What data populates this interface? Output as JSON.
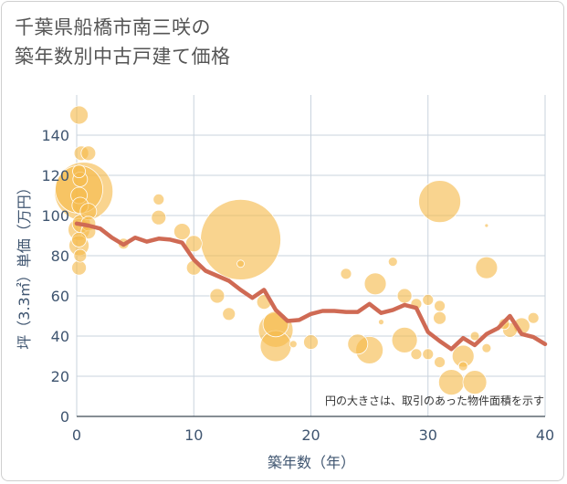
{
  "title_lines": [
    "千葉県船橋市南三咲の",
    "築年数別中古戸建て価格"
  ],
  "chart_data": {
    "type": "scatter+line",
    "xlabel": "築年数（年）",
    "ylabel": "坪（3.3㎡）単価（万円）",
    "xlim": [
      0,
      40
    ],
    "ylim": [
      0,
      160
    ],
    "xticks": [
      0,
      10,
      20,
      30,
      40
    ],
    "yticks": [
      0,
      20,
      40,
      60,
      80,
      100,
      120,
      140
    ],
    "note": "円の大きさは、取引のあった物件面積を示す",
    "colors": {
      "bubble": "#f5b94a",
      "bubble_edge": "#ffffff",
      "line": "#cf6a54",
      "grid": "#c9d3de"
    },
    "trend_line": {
      "x": [
        0,
        1,
        2,
        3,
        4,
        5,
        6,
        7,
        8,
        9,
        10,
        11,
        12,
        13,
        14,
        15,
        16,
        17,
        18,
        19,
        20,
        21,
        22,
        23,
        24,
        25,
        26,
        27,
        28,
        29,
        30,
        31,
        32,
        33,
        34,
        35,
        36,
        37,
        38,
        39,
        40
      ],
      "y": [
        96,
        95,
        93.5,
        89,
        85.5,
        89,
        87,
        88.5,
        88,
        86.5,
        78,
        72.5,
        70,
        67.5,
        63,
        59,
        63,
        53,
        47.5,
        48,
        51,
        52.5,
        52.5,
        52,
        52,
        56,
        51.5,
        53,
        55.5,
        54,
        42,
        37.5,
        33.5,
        39,
        35.5,
        41,
        44,
        50,
        41,
        39.5,
        36
      ]
    },
    "bubbles": [
      {
        "x": 0.2,
        "y": 150,
        "s": 10
      },
      {
        "x": 0.4,
        "y": 131,
        "s": 8
      },
      {
        "x": 1,
        "y": 131,
        "s": 8
      },
      {
        "x": 0.2,
        "y": 122,
        "s": 7
      },
      {
        "x": 0.3,
        "y": 118,
        "s": 8
      },
      {
        "x": 0.2,
        "y": 113,
        "s": 26
      },
      {
        "x": 0.6,
        "y": 112,
        "s": 32
      },
      {
        "x": 0.2,
        "y": 110,
        "s": 9
      },
      {
        "x": 0.3,
        "y": 105,
        "s": 9
      },
      {
        "x": 1,
        "y": 102,
        "s": 9
      },
      {
        "x": 0.4,
        "y": 96,
        "s": 10
      },
      {
        "x": 1,
        "y": 96,
        "s": 8
      },
      {
        "x": 0.2,
        "y": 93,
        "s": 12
      },
      {
        "x": 1,
        "y": 92,
        "s": 8
      },
      {
        "x": 0.2,
        "y": 88,
        "s": 8
      },
      {
        "x": 0.2,
        "y": 85,
        "s": 11
      },
      {
        "x": 0.3,
        "y": 80,
        "s": 7
      },
      {
        "x": 0.2,
        "y": 74,
        "s": 8
      },
      {
        "x": 7,
        "y": 108,
        "s": 6
      },
      {
        "x": 7,
        "y": 99,
        "s": 8
      },
      {
        "x": 9,
        "y": 92,
        "s": 9
      },
      {
        "x": 10,
        "y": 86,
        "s": 9
      },
      {
        "x": 4,
        "y": 86,
        "s": 6
      },
      {
        "x": 10,
        "y": 74,
        "s": 8
      },
      {
        "x": 14,
        "y": 88,
        "s": 44
      },
      {
        "x": 14,
        "y": 76,
        "s": 4
      },
      {
        "x": 12,
        "y": 60,
        "s": 8
      },
      {
        "x": 13,
        "y": 51,
        "s": 7
      },
      {
        "x": 16,
        "y": 57,
        "s": 8
      },
      {
        "x": 17,
        "y": 46,
        "s": 14
      },
      {
        "x": 17,
        "y": 43,
        "s": 19
      },
      {
        "x": 17,
        "y": 35,
        "s": 17
      },
      {
        "x": 18.5,
        "y": 36,
        "s": 4
      },
      {
        "x": 20,
        "y": 37,
        "s": 8
      },
      {
        "x": 23,
        "y": 71,
        "s": 6
      },
      {
        "x": 24,
        "y": 36,
        "s": 11
      },
      {
        "x": 25,
        "y": 33,
        "s": 15
      },
      {
        "x": 25.5,
        "y": 66,
        "s": 12
      },
      {
        "x": 26,
        "y": 47,
        "s": 3
      },
      {
        "x": 27,
        "y": 77,
        "s": 5
      },
      {
        "x": 28,
        "y": 60,
        "s": 8
      },
      {
        "x": 28,
        "y": 38,
        "s": 14
      },
      {
        "x": 29,
        "y": 56,
        "s": 6
      },
      {
        "x": 29,
        "y": 31,
        "s": 6
      },
      {
        "x": 30,
        "y": 58,
        "s": 6
      },
      {
        "x": 30,
        "y": 31,
        "s": 6
      },
      {
        "x": 31,
        "y": 107,
        "s": 23
      },
      {
        "x": 31,
        "y": 55,
        "s": 6
      },
      {
        "x": 31,
        "y": 49,
        "s": 7
      },
      {
        "x": 31,
        "y": 27,
        "s": 6
      },
      {
        "x": 32,
        "y": 17,
        "s": 14
      },
      {
        "x": 33,
        "y": 30,
        "s": 12
      },
      {
        "x": 33,
        "y": 25,
        "s": 5
      },
      {
        "x": 34,
        "y": 17,
        "s": 13
      },
      {
        "x": 34,
        "y": 40,
        "s": 5
      },
      {
        "x": 35,
        "y": 95,
        "s": 2
      },
      {
        "x": 35,
        "y": 74,
        "s": 12
      },
      {
        "x": 35,
        "y": 34,
        "s": 5
      },
      {
        "x": 36.5,
        "y": 46,
        "s": 6
      },
      {
        "x": 37,
        "y": 43,
        "s": 8
      },
      {
        "x": 38,
        "y": 45,
        "s": 9
      },
      {
        "x": 39,
        "y": 49,
        "s": 6
      }
    ]
  }
}
